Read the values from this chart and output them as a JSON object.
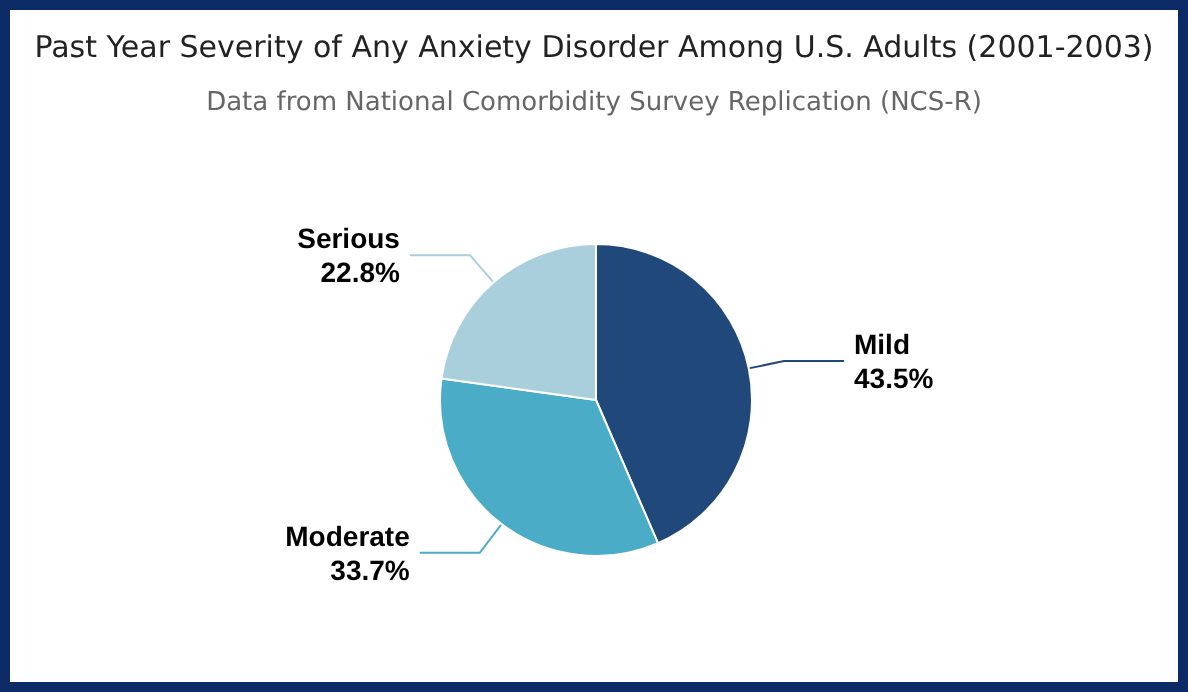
{
  "chart_data": {
    "type": "pie",
    "title": "Past Year Severity of Any Anxiety Disorder Among U.S. Adults (2001-2003)",
    "subtitle": "Data from National Comorbidity Survey Replication (NCS-R)",
    "categories": [
      "Mild",
      "Moderate",
      "Serious"
    ],
    "values": [
      43.5,
      33.7,
      22.8
    ],
    "value_labels": [
      "43.5%",
      "33.7%",
      "22.8%"
    ],
    "colors": [
      "#21487a",
      "#4aacc6",
      "#a9cfdd"
    ],
    "legend": false
  }
}
